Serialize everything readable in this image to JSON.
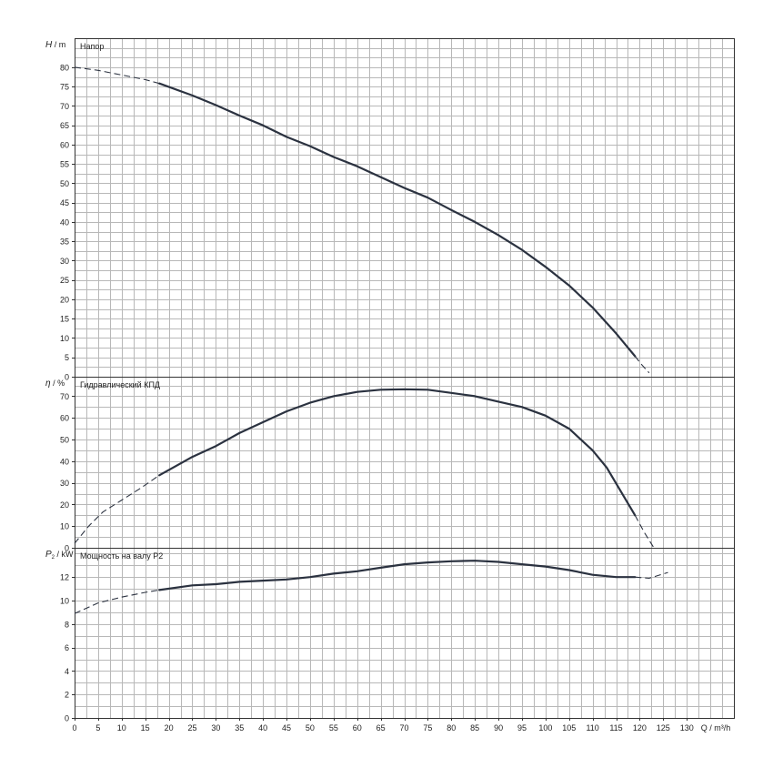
{
  "chart_data": [
    {
      "type": "line",
      "panel": "head",
      "label": "Напор",
      "ylabel": {
        "symbol": "H",
        "unit": "m"
      },
      "ylim": [
        0,
        87.5
      ],
      "xlim": [
        0,
        140
      ],
      "yticks": [
        0,
        5,
        10,
        15,
        20,
        25,
        30,
        35,
        40,
        45,
        50,
        55,
        60,
        65,
        70,
        75,
        80
      ],
      "series": [
        {
          "style": "dashed",
          "points": [
            [
              0,
              80
            ],
            [
              5,
              79.2
            ],
            [
              10,
              78
            ],
            [
              15,
              76.8
            ],
            [
              18,
              75.8
            ]
          ]
        },
        {
          "style": "solid",
          "points": [
            [
              18,
              75.8
            ],
            [
              25,
              72.7
            ],
            [
              30,
              70.2
            ],
            [
              35,
              67.5
            ],
            [
              40,
              65
            ],
            [
              45,
              62
            ],
            [
              50,
              59.6
            ],
            [
              55,
              56.8
            ],
            [
              60,
              54.4
            ],
            [
              65,
              51.6
            ],
            [
              70,
              48.8
            ],
            [
              75,
              46.3
            ],
            [
              80,
              43.1
            ],
            [
              85,
              40
            ],
            [
              90,
              36.6
            ],
            [
              95,
              32.8
            ],
            [
              100,
              28.4
            ],
            [
              105,
              23.6
            ],
            [
              110,
              17.9
            ],
            [
              115,
              11.2
            ],
            [
              119,
              5.3
            ]
          ]
        },
        {
          "style": "dashed",
          "points": [
            [
              119,
              5.3
            ],
            [
              120.5,
              3
            ],
            [
              122,
              1
            ]
          ]
        }
      ]
    },
    {
      "type": "line",
      "panel": "efficiency",
      "label": "Гидравлический КПД",
      "ylabel": {
        "symbol": "η",
        "unit": "%"
      },
      "ylim": [
        0,
        79
      ],
      "xlim": [
        0,
        140
      ],
      "yticks": [
        0,
        10,
        20,
        30,
        40,
        50,
        60,
        70
      ],
      "series": [
        {
          "style": "dashed",
          "points": [
            [
              0,
              2
            ],
            [
              3,
              10
            ],
            [
              6,
              16.5
            ],
            [
              10,
              22
            ],
            [
              14,
              27.5
            ],
            [
              18,
              33.5
            ]
          ]
        },
        {
          "style": "solid",
          "points": [
            [
              18,
              33.5
            ],
            [
              25,
              42
            ],
            [
              30,
              47
            ],
            [
              35,
              53
            ],
            [
              40,
              58
            ],
            [
              45,
              63
            ],
            [
              50,
              67
            ],
            [
              55,
              70
            ],
            [
              60,
              72
            ],
            [
              65,
              73
            ],
            [
              70,
              73.2
            ],
            [
              75,
              73
            ],
            [
              80,
              71.5
            ],
            [
              85,
              70
            ],
            [
              90,
              67.5
            ],
            [
              95,
              65
            ],
            [
              100,
              61
            ],
            [
              105,
              55
            ],
            [
              110,
              45
            ],
            [
              113,
              37
            ],
            [
              116,
              26
            ],
            [
              119,
              15
            ]
          ]
        },
        {
          "style": "dashed",
          "points": [
            [
              119,
              15
            ],
            [
              121,
              7
            ],
            [
              123,
              0
            ]
          ]
        }
      ]
    },
    {
      "type": "line",
      "panel": "power",
      "label": "Мощность на валу P2",
      "ylabel": {
        "symbol": "P",
        "subscript": "2",
        "unit": "kW"
      },
      "ylim": [
        0,
        14.5
      ],
      "xlim": [
        0,
        140
      ],
      "yticks": [
        0,
        2,
        4,
        6,
        8,
        10,
        12
      ],
      "series": [
        {
          "style": "dashed",
          "points": [
            [
              0,
              8.9
            ],
            [
              5,
              9.8
            ],
            [
              10,
              10.3
            ],
            [
              15,
              10.7
            ],
            [
              18,
              10.9
            ]
          ]
        },
        {
          "style": "solid",
          "points": [
            [
              18,
              10.9
            ],
            [
              25,
              11.3
            ],
            [
              30,
              11.4
            ],
            [
              35,
              11.6
            ],
            [
              40,
              11.7
            ],
            [
              45,
              11.8
            ],
            [
              50,
              12
            ],
            [
              55,
              12.3
            ],
            [
              60,
              12.5
            ],
            [
              65,
              12.8
            ],
            [
              70,
              13.1
            ],
            [
              75,
              13.25
            ],
            [
              80,
              13.35
            ],
            [
              85,
              13.4
            ],
            [
              90,
              13.3
            ],
            [
              95,
              13.1
            ],
            [
              100,
              12.9
            ],
            [
              105,
              12.6
            ],
            [
              110,
              12.2
            ],
            [
              115,
              12
            ],
            [
              119,
              12
            ]
          ]
        },
        {
          "style": "dashed",
          "points": [
            [
              119,
              12
            ],
            [
              122,
              11.9
            ],
            [
              126,
              12.4
            ]
          ]
        }
      ]
    }
  ],
  "x_axis": {
    "label": "Q / m³/h",
    "ticks": [
      0,
      5,
      10,
      15,
      20,
      25,
      30,
      35,
      40,
      45,
      50,
      55,
      60,
      65,
      70,
      75,
      80,
      85,
      90,
      95,
      100,
      105,
      110,
      115,
      120,
      125,
      130
    ]
  }
}
